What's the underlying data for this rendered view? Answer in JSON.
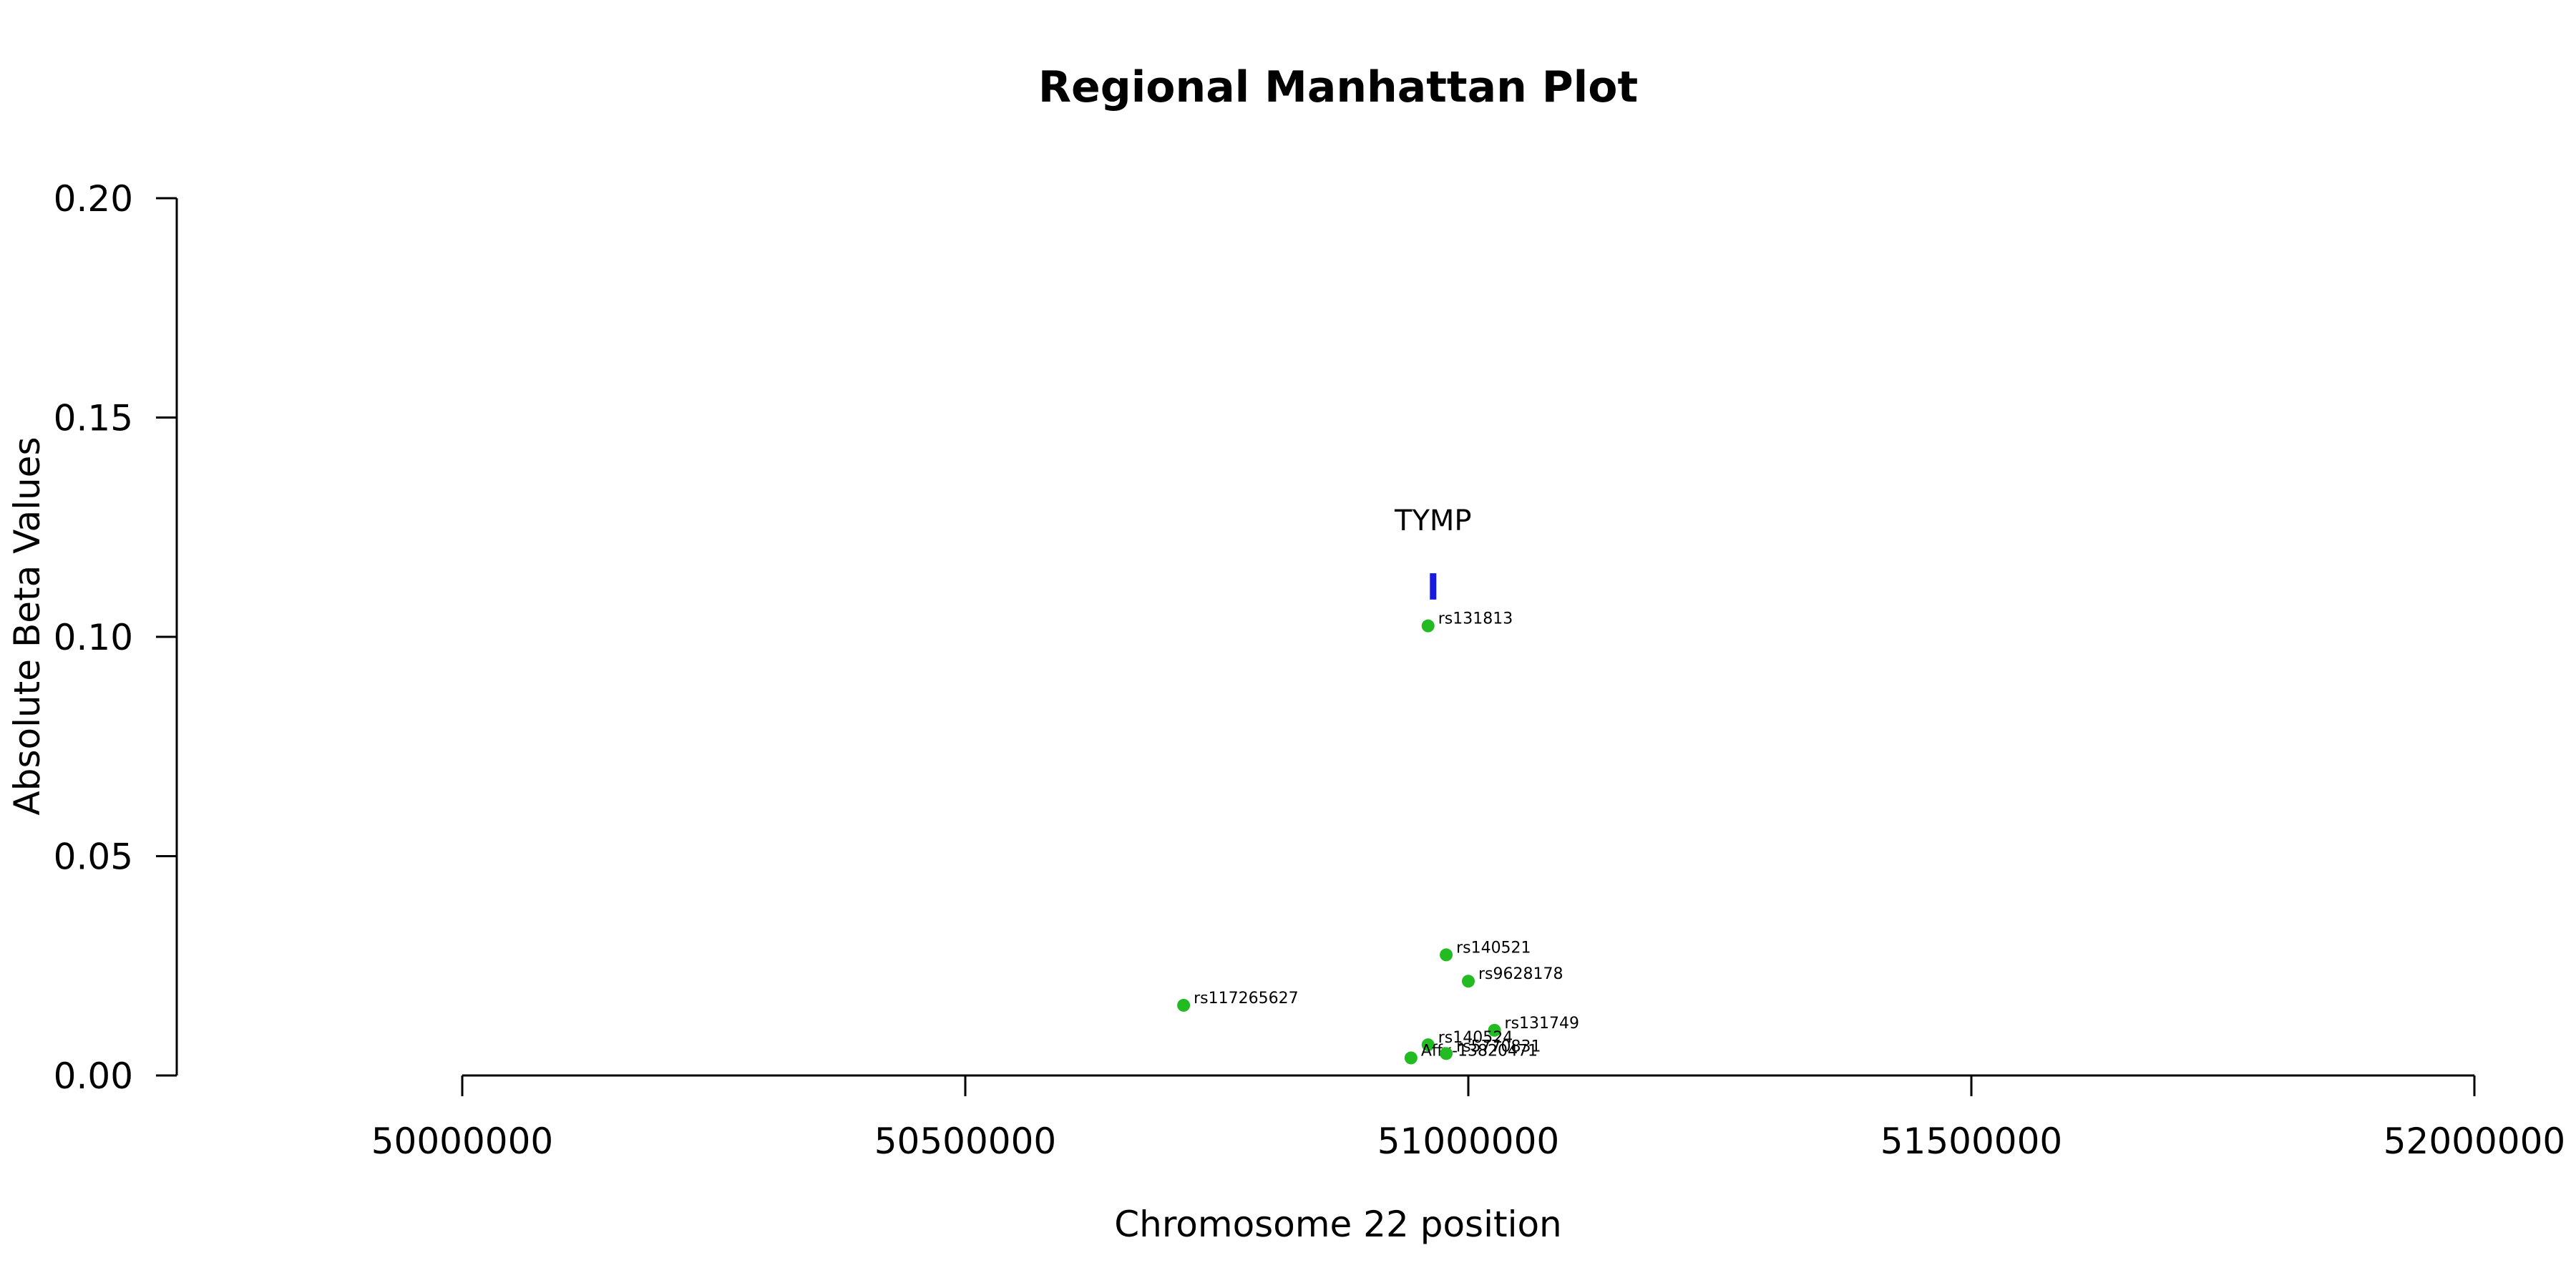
{
  "chart_data": {
    "type": "scatter",
    "title": "Regional Manhattan Plot",
    "xlabel": "Chromosome 22 position",
    "ylabel": "Absolute Beta Values",
    "xlim": [
      50000000,
      52000000
    ],
    "ylim": [
      0,
      0.2
    ],
    "x_ticks": [
      "50000000",
      "50500000",
      "51000000",
      "51500000",
      "52000000"
    ],
    "y_ticks": [
      "0.00",
      "0.05",
      "0.10",
      "0.15",
      "0.20"
    ],
    "point_color": "#22bb22",
    "points": [
      {
        "label": "rs131813",
        "x": 50960000,
        "y": 0.1025
      },
      {
        "label": "rs140521",
        "x": 50978000,
        "y": 0.0275
      },
      {
        "label": "rs9628178",
        "x": 51000000,
        "y": 0.0215
      },
      {
        "label": "rs117265627",
        "x": 50717000,
        "y": 0.016
      },
      {
        "label": "rs131749",
        "x": 51026000,
        "y": 0.0103
      },
      {
        "label": "rs140524",
        "x": 50960000,
        "y": 0.007
      },
      {
        "label": "Affx-13820471",
        "x": 50943000,
        "y": 0.004
      },
      {
        "label": "rs5770831",
        "x": 50978000,
        "y": 0.005
      }
    ],
    "gene": {
      "name": "TYMP",
      "x": 50965000,
      "y_low": 0.1085,
      "y_high": 0.1145,
      "color": "#1a1adf"
    }
  }
}
